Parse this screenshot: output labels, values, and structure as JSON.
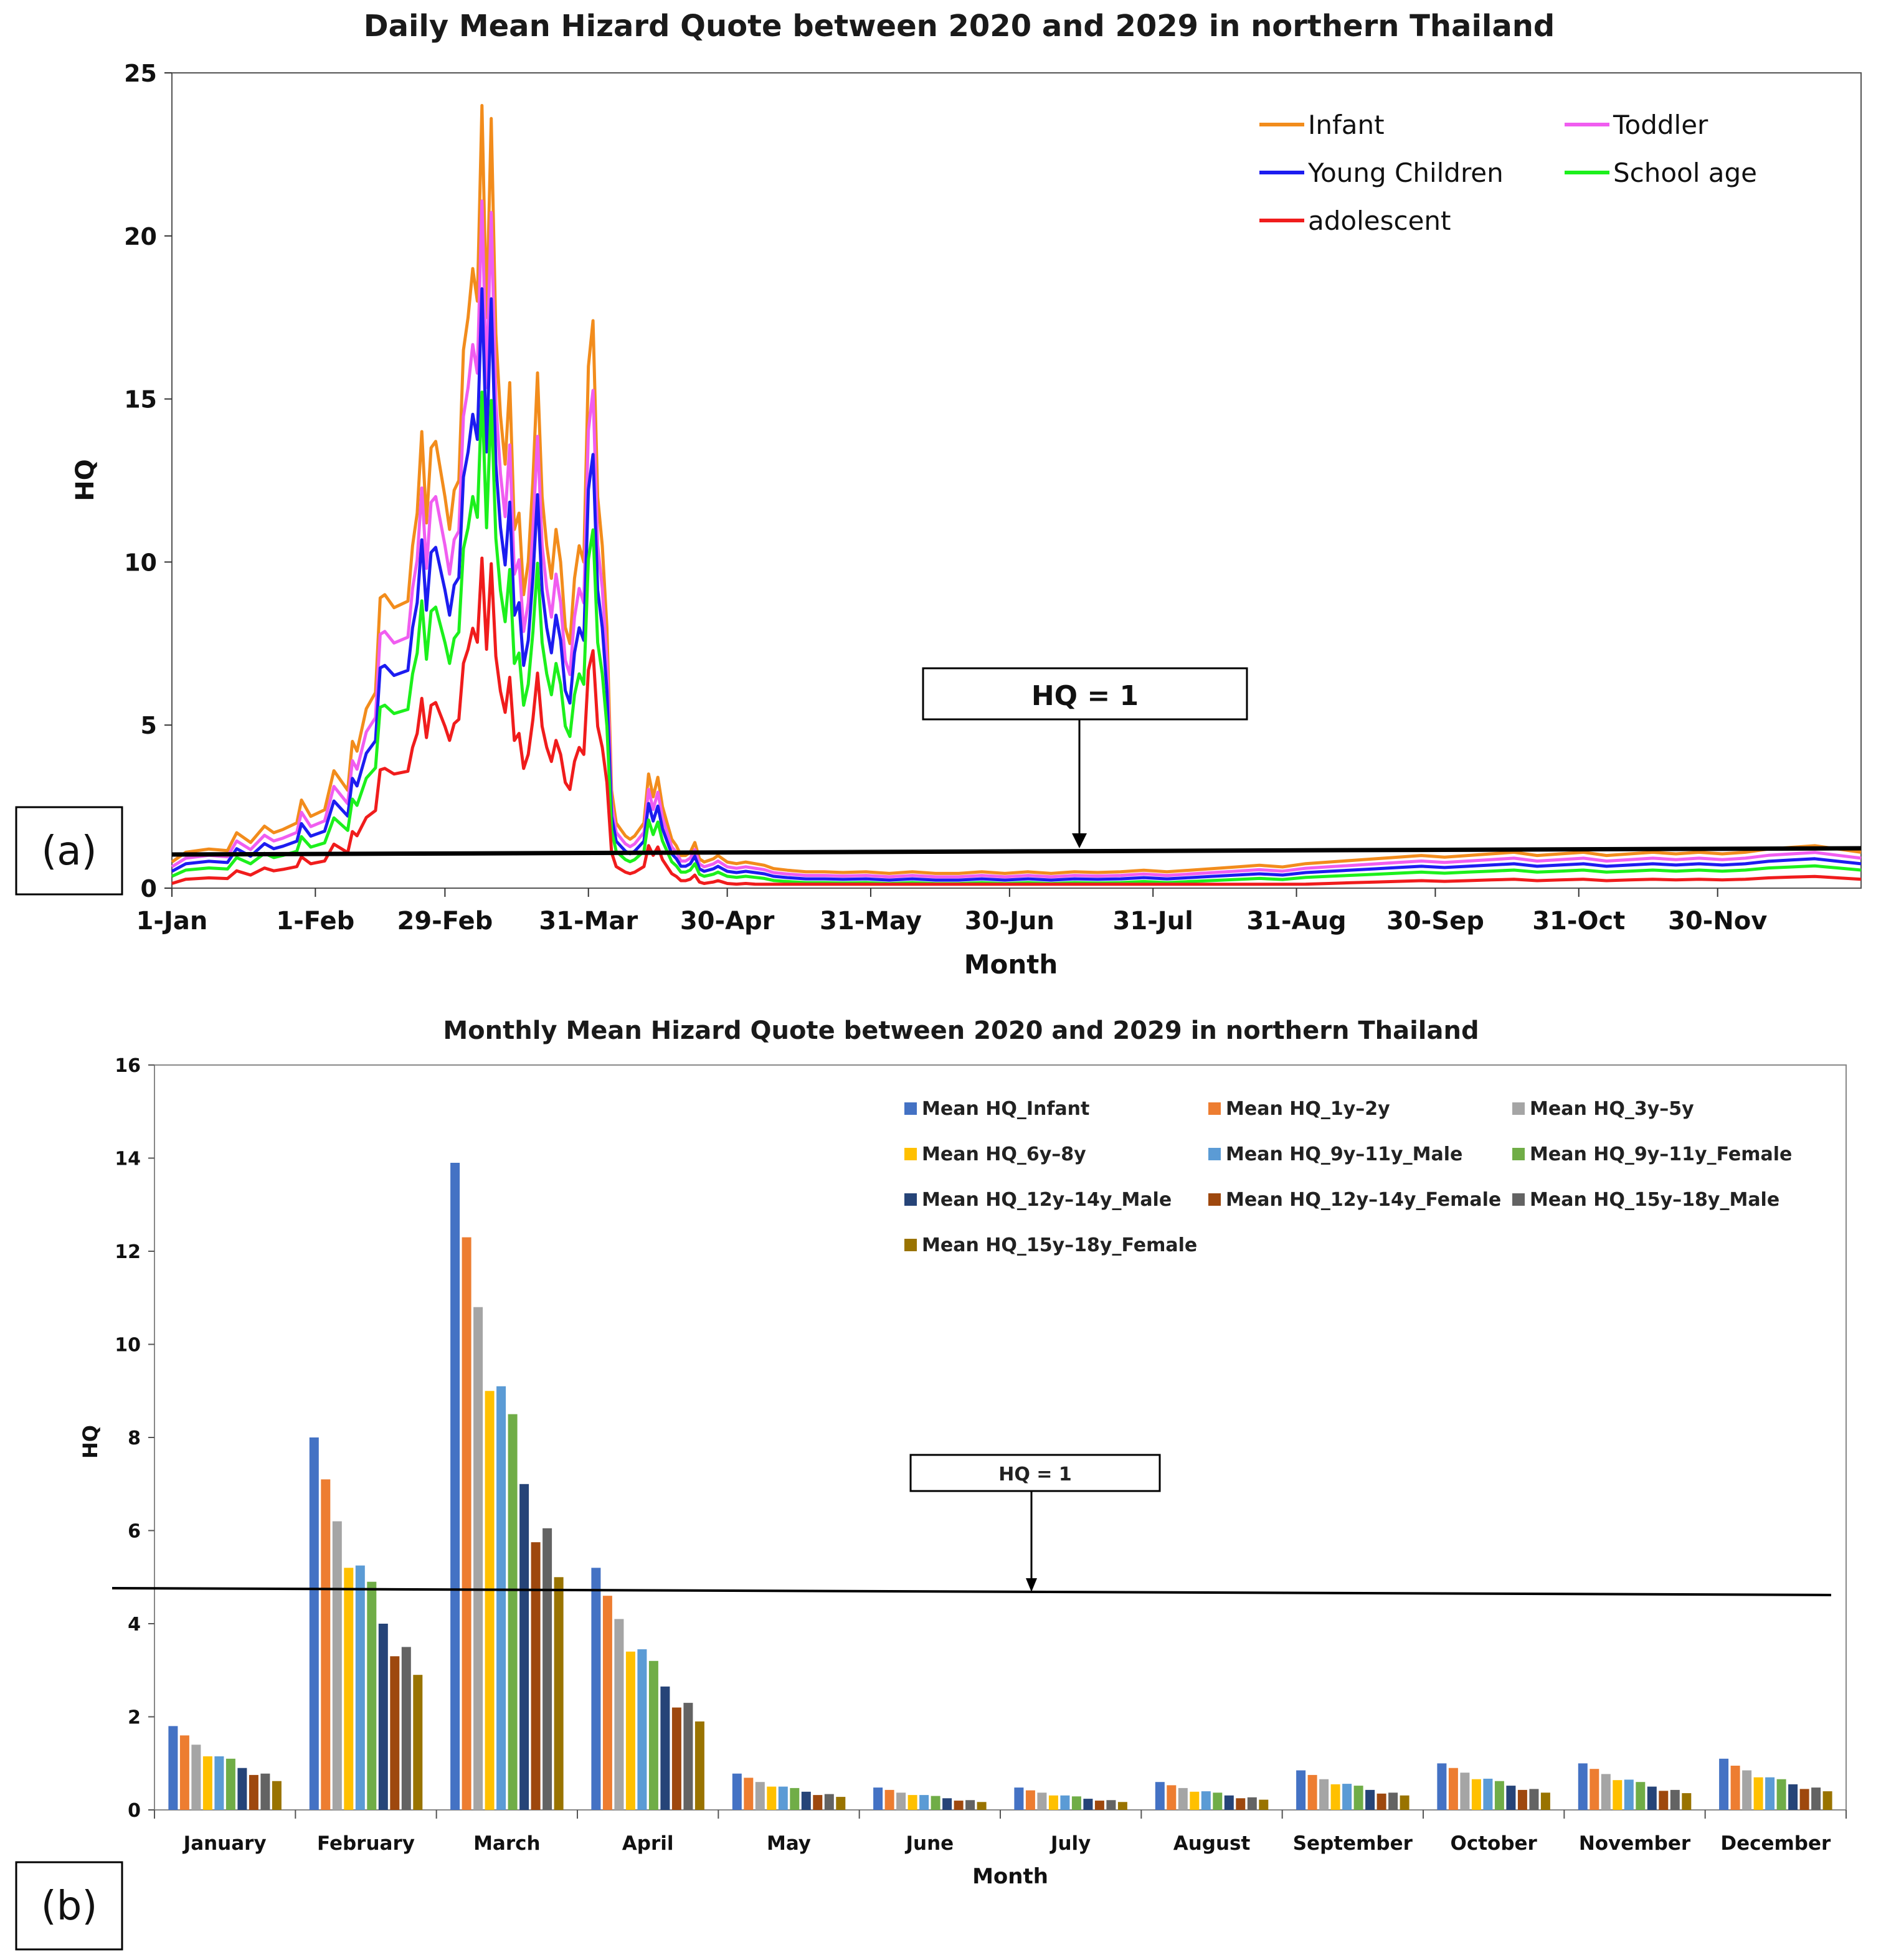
{
  "chart_data": [
    {
      "type": "line",
      "panel_label": "(a)",
      "title": "Daily Mean Hizard Quote between 2020 and 2029 in northern Thailand",
      "xlabel": "Month",
      "ylabel": "HQ",
      "ylim": [
        0,
        25
      ],
      "yticks": [
        "0",
        "5",
        "10",
        "15",
        "20",
        "25"
      ],
      "xtick_labels": [
        "1-Jan",
        "1-Feb",
        "29-Feb",
        "31-Mar",
        "30-Apr",
        "31-May",
        "30-Jun",
        "31-Jul",
        "31-Aug",
        "30-Sep",
        "31-Oct",
        "30-Nov"
      ],
      "xtick_days": [
        0,
        31,
        59,
        90,
        120,
        151,
        181,
        212,
        243,
        273,
        304,
        334
      ],
      "xlim_days": [
        0,
        365
      ],
      "reference_line": {
        "label": "HQ = 1",
        "value": 1
      },
      "base_series": {
        "days": [
          0,
          3,
          8,
          12,
          14,
          17,
          20,
          22,
          24,
          27,
          28,
          30,
          33,
          35,
          38,
          39,
          40,
          42,
          44,
          45,
          46,
          48,
          51,
          52,
          53,
          54,
          55,
          56,
          57,
          59,
          60,
          61,
          62,
          63,
          64,
          65,
          66,
          67,
          68,
          69,
          70,
          71,
          72,
          73,
          74,
          75,
          76,
          77,
          78,
          79,
          80,
          81,
          82,
          83,
          84,
          85,
          86,
          87,
          88,
          89,
          90,
          91,
          92,
          93,
          94,
          95,
          96,
          97,
          98,
          99,
          100,
          101,
          102,
          103,
          104,
          105,
          106,
          107,
          108,
          109,
          110,
          111,
          112,
          113,
          114,
          115,
          116,
          117,
          118,
          119,
          120,
          122,
          124,
          126,
          128,
          130,
          133,
          137,
          141,
          145,
          150,
          155,
          160,
          165,
          170,
          175,
          180,
          185,
          190,
          195,
          200,
          205,
          210,
          215,
          220,
          225,
          230,
          235,
          240,
          245,
          250,
          255,
          260,
          265,
          270,
          275,
          280,
          285,
          290,
          295,
          300,
          305,
          310,
          315,
          320,
          325,
          330,
          335,
          340,
          345,
          350,
          355,
          360,
          365
        ],
        "values": [
          0.8,
          1.1,
          1.2,
          1.15,
          1.7,
          1.4,
          1.9,
          1.7,
          1.8,
          2.0,
          2.7,
          2.2,
          2.4,
          3.6,
          3.0,
          4.5,
          4.2,
          5.5,
          6.0,
          8.9,
          9.0,
          8.6,
          8.8,
          10.5,
          11.5,
          14.0,
          11.2,
          13.5,
          13.7,
          12.0,
          11.0,
          12.2,
          12.5,
          16.5,
          17.5,
          19.0,
          18.0,
          24.0,
          17.5,
          23.6,
          17.0,
          14.5,
          13.0,
          15.5,
          11.0,
          11.5,
          9.0,
          10.0,
          12.5,
          15.8,
          12.0,
          10.5,
          9.5,
          11.0,
          10.0,
          8.0,
          7.5,
          9.5,
          10.5,
          10.0,
          16.0,
          17.4,
          12.0,
          10.5,
          8.0,
          3.0,
          2.0,
          1.8,
          1.6,
          1.5,
          1.6,
          1.8,
          2.0,
          3.5,
          2.8,
          3.4,
          2.5,
          2.0,
          1.5,
          1.3,
          1.0,
          1.0,
          1.1,
          1.4,
          0.9,
          0.8,
          0.85,
          0.9,
          1.0,
          0.9,
          0.8,
          0.75,
          0.8,
          0.75,
          0.7,
          0.6,
          0.55,
          0.5,
          0.5,
          0.48,
          0.5,
          0.45,
          0.5,
          0.45,
          0.45,
          0.5,
          0.45,
          0.5,
          0.45,
          0.5,
          0.48,
          0.5,
          0.55,
          0.5,
          0.55,
          0.6,
          0.65,
          0.7,
          0.65,
          0.75,
          0.8,
          0.85,
          0.9,
          0.95,
          1.0,
          0.95,
          1.0,
          1.05,
          1.1,
          1.0,
          1.05,
          1.1,
          1.0,
          1.05,
          1.1,
          1.05,
          1.1,
          1.05,
          1.1,
          1.2,
          1.25,
          1.3,
          1.2,
          1.1
        ]
      },
      "series": [
        {
          "name": "Infant",
          "color": "#f28c1c",
          "scale": 1.0,
          "offset": 0.0
        },
        {
          "name": "Toddler",
          "color": "#f05df0",
          "scale": 0.88,
          "offset": -0.05
        },
        {
          "name": "Young Children",
          "color": "#1c1cf0",
          "scale": 0.77,
          "offset": -0.1
        },
        {
          "name": "School age",
          "color": "#1cf01c",
          "scale": 0.64,
          "offset": -0.15
        },
        {
          "name": "adolescent",
          "color": "#f01c1c",
          "scale": 0.43,
          "offset": -0.2
        }
      ]
    },
    {
      "type": "bar",
      "panel_label": "(b)",
      "title": "Monthly Mean Hizard Quote between 2020 and 2029 in northern Thailand",
      "xlabel": "Month",
      "ylabel": "HQ",
      "ylim": [
        0,
        16
      ],
      "yticks": [
        "0",
        "2",
        "4",
        "6",
        "8",
        "10",
        "12",
        "14",
        "16"
      ],
      "reference_line": {
        "label": "HQ = 1"
      },
      "categories": [
        "January",
        "February",
        "March",
        "April",
        "May",
        "June",
        "July",
        "August",
        "September",
        "October",
        "November",
        "December"
      ],
      "series": [
        {
          "name": "Mean HQ_Infant",
          "color": "#4472c4",
          "values": [
            1.8,
            8.0,
            13.9,
            5.2,
            0.78,
            0.48,
            0.48,
            0.6,
            0.85,
            1.0,
            1.0,
            1.1
          ]
        },
        {
          "name": "Mean HQ_1y–2y",
          "color": "#ed7d31",
          "values": [
            1.6,
            7.1,
            12.3,
            4.6,
            0.69,
            0.43,
            0.42,
            0.53,
            0.75,
            0.9,
            0.88,
            0.95
          ]
        },
        {
          "name": "Mean HQ_3y–5y",
          "color": "#a5a5a5",
          "values": [
            1.4,
            6.2,
            10.8,
            4.1,
            0.6,
            0.37,
            0.37,
            0.47,
            0.66,
            0.8,
            0.77,
            0.85
          ]
        },
        {
          "name": "Mean HQ_6y–8y",
          "color": "#ffc000",
          "values": [
            1.15,
            5.2,
            9.0,
            3.4,
            0.5,
            0.32,
            0.31,
            0.39,
            0.55,
            0.66,
            0.64,
            0.7
          ]
        },
        {
          "name": "Mean HQ_9y–11y_Male",
          "color": "#5b9bd5",
          "values": [
            1.15,
            5.25,
            9.1,
            3.45,
            0.5,
            0.32,
            0.31,
            0.4,
            0.56,
            0.67,
            0.65,
            0.7
          ]
        },
        {
          "name": "Mean HQ_9y–11y_Female",
          "color": "#70ad47",
          "values": [
            1.1,
            4.9,
            8.5,
            3.2,
            0.47,
            0.3,
            0.29,
            0.37,
            0.52,
            0.62,
            0.6,
            0.66
          ]
        },
        {
          "name": "Mean HQ_12y–14y_Male",
          "color": "#264478",
          "values": [
            0.9,
            4.0,
            7.0,
            2.65,
            0.39,
            0.25,
            0.24,
            0.31,
            0.43,
            0.52,
            0.5,
            0.55
          ]
        },
        {
          "name": "Mean HQ_12y–14y_Female",
          "color": "#9e480e",
          "values": [
            0.75,
            3.3,
            5.75,
            2.2,
            0.32,
            0.2,
            0.2,
            0.25,
            0.35,
            0.43,
            0.41,
            0.45
          ]
        },
        {
          "name": "Mean HQ_15y–18y_Male",
          "color": "#636363",
          "values": [
            0.78,
            3.5,
            6.05,
            2.3,
            0.34,
            0.21,
            0.21,
            0.27,
            0.37,
            0.45,
            0.43,
            0.48
          ]
        },
        {
          "name": "Mean HQ_15y–18y_Female",
          "color": "#997300",
          "values": [
            0.62,
            2.9,
            5.0,
            1.9,
            0.28,
            0.17,
            0.17,
            0.22,
            0.31,
            0.37,
            0.36,
            0.4
          ]
        }
      ]
    }
  ]
}
